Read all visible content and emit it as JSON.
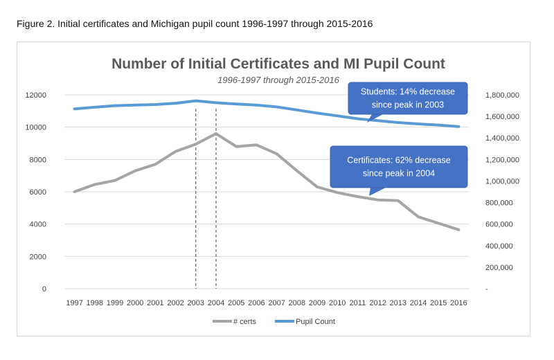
{
  "caption": "Figure 2. Initial certificates and Michigan pupil count 1996-1997 through 2015-2016",
  "colors": {
    "certs": "#a5a5a5",
    "pupils": "#5b9bd5",
    "callout_fill": "#4472c4",
    "gridline": "#d9d9d9",
    "text": "#595959"
  },
  "chart_data": {
    "type": "line",
    "title": "Number of Initial Certificates and MI Pupil Count",
    "subtitle": "1996-1997 through 2015-2016",
    "categories": [
      "1997",
      "1998",
      "1999",
      "2000",
      "2001",
      "2002",
      "2003",
      "2004",
      "2005",
      "2006",
      "2007",
      "2008",
      "2009",
      "2010",
      "2011",
      "2012",
      "2013",
      "2014",
      "2015",
      "2016"
    ],
    "series": [
      {
        "name": "# certs",
        "axis": "left",
        "color": "#a5a5a5",
        "values": [
          6000,
          6450,
          6700,
          7300,
          7700,
          8500,
          8950,
          9600,
          8800,
          8900,
          8350,
          7300,
          6300,
          5950,
          5700,
          5500,
          5450,
          4450,
          4050,
          3650
        ]
      },
      {
        "name": "Pupil Count",
        "axis": "right",
        "color": "#5b9bd5",
        "values": [
          1670000,
          1685000,
          1700000,
          1705000,
          1710000,
          1722000,
          1745000,
          1727000,
          1715000,
          1705000,
          1688000,
          1660000,
          1630000,
          1605000,
          1578000,
          1560000,
          1543000,
          1530000,
          1520000,
          1505000
        ]
      }
    ],
    "y_left": {
      "min": 0,
      "max": 12000,
      "ticks": [
        "0",
        "2000",
        "4000",
        "6000",
        "8000",
        "10000",
        "12000"
      ]
    },
    "y_right": {
      "min": 0,
      "max": 1800000,
      "ticks": [
        "-",
        "200,000",
        "400,000",
        "600,000",
        "800,000",
        "1,000,000",
        "1,200,000",
        "1,400,000",
        "1,600,000",
        "1,800,000"
      ]
    },
    "reference_lines": [
      "2003",
      "2004"
    ],
    "gridlines": true,
    "legend_position": "bottom",
    "legend": [
      "# certs",
      "Pupil Count"
    ],
    "annotations": [
      {
        "lines": [
          "Students: 14% decrease",
          "since peak in 2003"
        ]
      },
      {
        "lines": [
          "Certificates: 62% decrease",
          "since peak in 2004"
        ]
      }
    ]
  }
}
